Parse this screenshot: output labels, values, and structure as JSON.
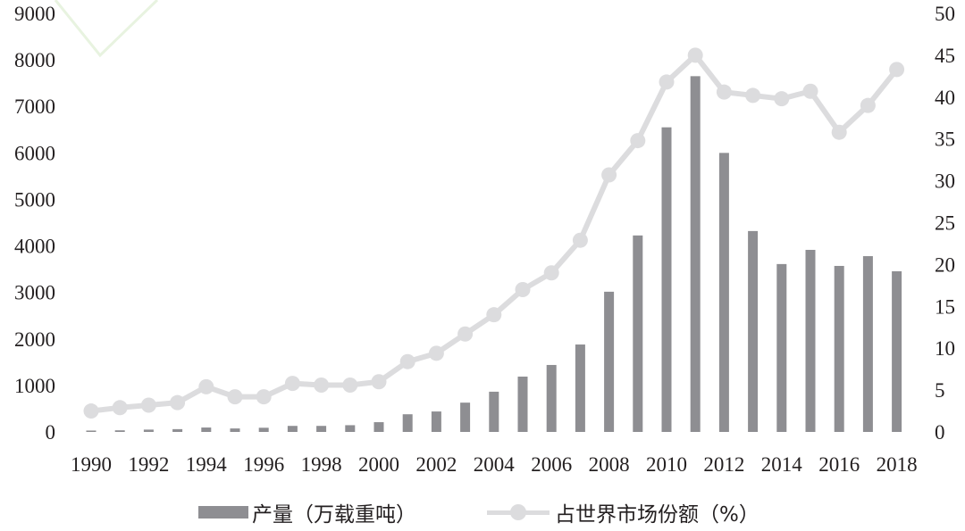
{
  "chart_data": {
    "type": "bar+line",
    "title": "",
    "xlabel": "",
    "ylabel_left": "",
    "ylabel_right": "",
    "categories": [
      "1990",
      "1991",
      "1992",
      "1993",
      "1994",
      "1995",
      "1996",
      "1997",
      "1998",
      "1999",
      "2000",
      "2001",
      "2002",
      "2003",
      "2004",
      "2005",
      "2006",
      "2007",
      "2008",
      "2009",
      "2010",
      "2011",
      "2012",
      "2013",
      "2014",
      "2015",
      "2016",
      "2017",
      "2018"
    ],
    "x_tick_labels": [
      "1990",
      "1992",
      "1994",
      "1996",
      "1998",
      "2000",
      "2002",
      "2004",
      "2006",
      "2008",
      "2010",
      "2012",
      "2014",
      "2016",
      "2018"
    ],
    "series": [
      {
        "name": "产量（万载重吨）",
        "type": "bar",
        "axis": "left",
        "color": "#8e8e92",
        "values": [
          30,
          35,
          50,
          60,
          95,
          75,
          90,
          130,
          130,
          145,
          210,
          380,
          440,
          630,
          865,
          1190,
          1440,
          1880,
          3015,
          4225,
          6550,
          7650,
          6000,
          4320,
          3610,
          3915,
          3570,
          3780,
          3455
        ]
      },
      {
        "name": "占世界市场份额（%）",
        "type": "line",
        "axis": "right",
        "color": "#dcdcde",
        "values": [
          2.5,
          2.9,
          3.2,
          3.5,
          5.4,
          4.2,
          4.2,
          5.8,
          5.6,
          5.6,
          6.0,
          8.4,
          9.4,
          11.7,
          14.0,
          17.0,
          19.0,
          22.9,
          30.7,
          34.8,
          41.8,
          45.0,
          40.6,
          40.2,
          39.8,
          40.7,
          35.8,
          39.0,
          43.3
        ]
      }
    ],
    "ylim_left": [
      0,
      9000
    ],
    "yticks_left": [
      "0",
      "1000",
      "2000",
      "3000",
      "4000",
      "5000",
      "6000",
      "7000",
      "8000",
      "9000"
    ],
    "ylim_right": [
      0,
      50
    ],
    "yticks_right": [
      "0",
      "5",
      "10",
      "15",
      "20",
      "25",
      "30",
      "35",
      "40",
      "45",
      "50"
    ],
    "grid": false,
    "legend_position": "bottom"
  },
  "legend": {
    "bar_label": "产量（万载重吨）",
    "line_label": "占世界市场份额（%）"
  }
}
